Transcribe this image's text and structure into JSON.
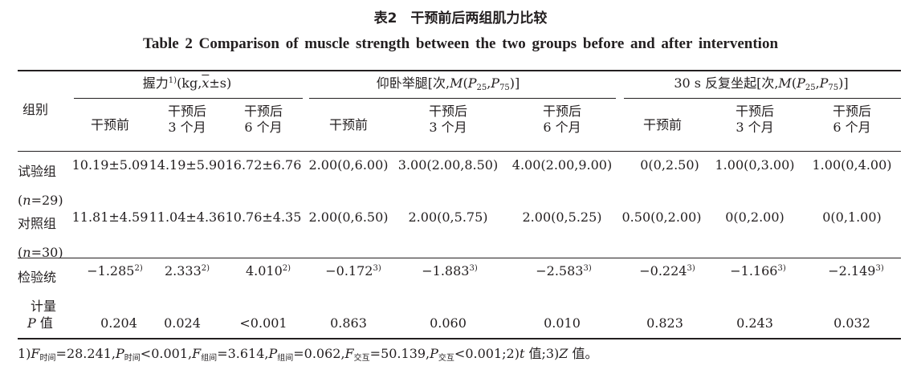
{
  "title_cn": "表2　干预前后两组肌力比较",
  "title_en": "Table 2  Comparison of muscle strength between the two groups before and after intervention",
  "header": {
    "group": "组别",
    "grip_pre": "握力",
    "grip_sup": "1)",
    "grip_post": "(kg,",
    "grip_xbar": "x",
    "grip_tail": "±s)",
    "situp_pre": "仰卧举腿[次,",
    "sit_stand_pre": "30 s 反复坐起[次,",
    "m": "M",
    "paren_open": "(",
    "p": "P",
    "sub25": "25",
    "comma": ",",
    "sub75": "75",
    "close": ")]",
    "sub_before": "干预前",
    "sub_after": "干预后",
    "sub_3m": "3 个月",
    "sub_6m": "6 个月"
  },
  "rows": [
    {
      "label1": "试验组",
      "label2": "(",
      "n": "n",
      "label3": "=29)",
      "values": [
        "10.19±5.09",
        "14.19±5.90",
        "16.72±6.76",
        "2.00(0,6.00)",
        "3.00(2.00,8.50)",
        "4.00(2.00,9.00)",
        "0(0,2.50)",
        "1.00(0,3.00)",
        "1.00(0,4.00)"
      ]
    },
    {
      "label1": "对照组",
      "label2": "(",
      "n": "n",
      "label3": "=30)",
      "values": [
        "11.81±4.59",
        "11.04±4.36",
        "10.76±4.35",
        "2.00(0,6.50)",
        "2.00(0,5.75)",
        "2.00(0,5.25)",
        "0.50(0,2.00)",
        "0(0,2.00)",
        "0(0,1.00)"
      ]
    }
  ],
  "stat": {
    "label1": "检验统",
    "label2": "计量",
    "values": [
      "−1.285",
      "2.333",
      "4.010",
      "−0.172",
      "−1.883",
      "−2.583",
      "−0.224",
      "−1.166",
      "−2.149"
    ],
    "marks": [
      "2)",
      "2)",
      "2)",
      "3)",
      "3)",
      "3)",
      "3)",
      "3)",
      "3)"
    ]
  },
  "pval": {
    "label_p": "P",
    "label_rest": " 值",
    "values": [
      "0.204",
      "0.024",
      "<0.001",
      "0.863",
      "0.060",
      "0.010",
      "0.823",
      "0.243",
      "0.032"
    ]
  },
  "footnote": {
    "f1": "1)",
    "F": "F",
    "P": "P",
    "t": "t",
    "Z": "Z",
    "sub_time": "时间",
    "sub_group": "组间",
    "sub_inter": "交互",
    "v1": "=28.241,",
    "v2": "<0.001,",
    "v3": "=3.614,",
    "v4": "=0.062,",
    "v5": "=50.139,",
    "v6": "<0.001;2)",
    "v7": " 值;3)",
    "v8": " 值。"
  }
}
